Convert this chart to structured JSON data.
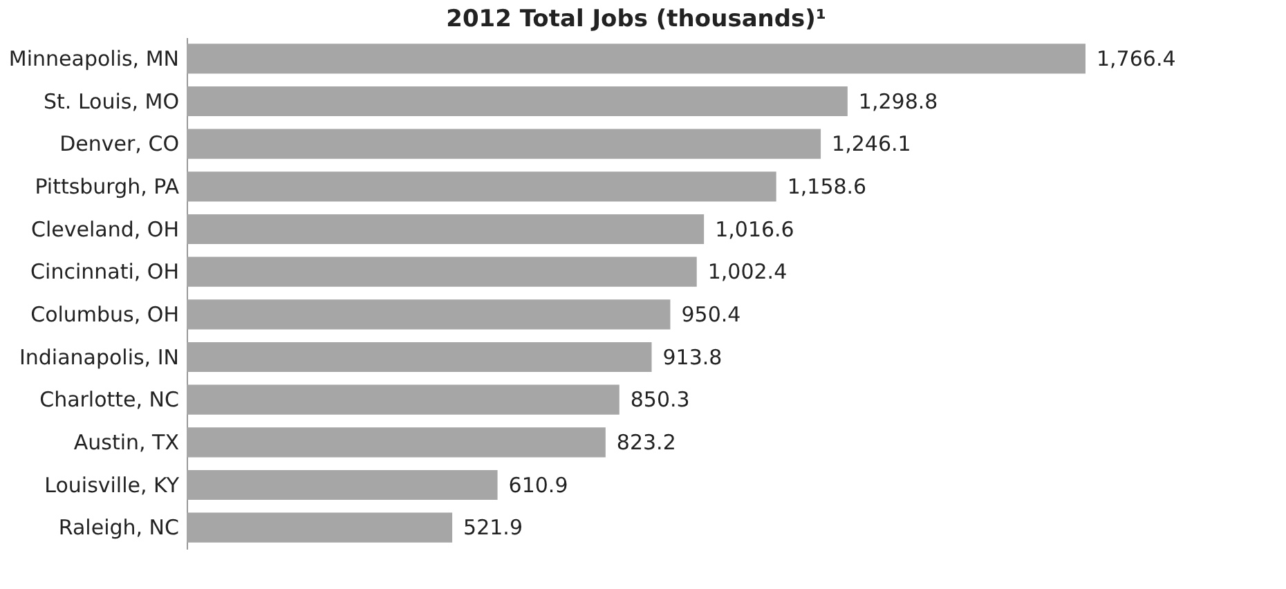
{
  "chart_data": {
    "type": "bar",
    "orientation": "horizontal",
    "title": "2012 Total Jobs (thousands)¹",
    "categories": [
      "Minneapolis, MN",
      "St. Louis, MO",
      "Denver, CO",
      "Pittsburgh, PA",
      "Cleveland, OH",
      "Cincinnati, OH",
      "Columbus, OH",
      "Indianapolis, IN",
      "Charlotte, NC",
      "Austin, TX",
      "Louisville, KY",
      "Raleigh, NC"
    ],
    "values": [
      1766.4,
      1298.8,
      1246.1,
      1158.6,
      1016.6,
      1002.4,
      950.4,
      913.8,
      850.3,
      823.2,
      610.9,
      521.9
    ],
    "value_labels": [
      "1,766.4",
      "1,298.8",
      "1,246.1",
      "1,158.6",
      "1,016.6",
      "1,002.4",
      "950.4",
      "913.8",
      "850.3",
      "823.2",
      "610.9",
      "521.9"
    ],
    "color": "#a6a6a6",
    "grid": false
  }
}
